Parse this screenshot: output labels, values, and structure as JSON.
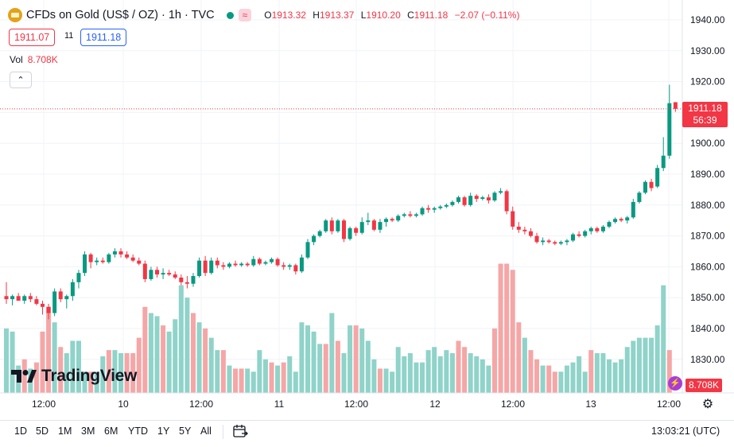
{
  "header": {
    "symbol": "CFDs on Gold (US$ / OZ) · 1h · TVC",
    "waves_icon": "≈",
    "o_label": "O",
    "o_value": "1913.32",
    "h_label": "H",
    "h_value": "1913.37",
    "l_label": "L",
    "l_value": "1910.20",
    "c_label": "C",
    "c_value": "1911.18",
    "change": "−2.07 (−0.11%)",
    "sell_price": "1911.07",
    "spread": "11",
    "buy_price": "1911.18"
  },
  "volume": {
    "label": "Vol",
    "value": "8.708K"
  },
  "collapse_icon": "chevron-up-icon",
  "brand": {
    "name": "TradingView"
  },
  "price_axis": {
    "ticks": [
      "1940.00",
      "1930.00",
      "1920.00",
      "1910.00",
      "1900.00",
      "1890.00",
      "1880.00",
      "1870.00",
      "1860.00",
      "1850.00",
      "1840.00",
      "1830.00"
    ],
    "current_price": "1911.18",
    "countdown": "56:39",
    "volume_label": "8.708K"
  },
  "time_axis": {
    "ticks": [
      "12:00",
      "10",
      "12:00",
      "11",
      "12:00",
      "12",
      "12:00",
      "13",
      "12:00"
    ]
  },
  "ranges": [
    "1D",
    "5D",
    "1M",
    "3M",
    "6M",
    "YTD",
    "1Y",
    "5Y",
    "All"
  ],
  "clock": "13:03:21 (UTC)",
  "colors": {
    "up": "#089981",
    "down": "#f23645",
    "vol_up": "#8fd3c9",
    "vol_down": "#f5a6a6"
  },
  "chart_data": {
    "type": "candlestick",
    "ylim": [
      1825,
      1945
    ],
    "candles": [
      [
        1850.5,
        1855.0,
        1848.0,
        1849.5
      ],
      [
        1849.5,
        1851.0,
        1847.5,
        1850.5
      ],
      [
        1850.5,
        1851.5,
        1849.0,
        1849.0
      ],
      [
        1849.0,
        1851.0,
        1848.0,
        1850.5
      ],
      [
        1850.5,
        1851.5,
        1848.5,
        1849.5
      ],
      [
        1849.5,
        1850.5,
        1847.5,
        1848.0
      ],
      [
        1848.0,
        1849.0,
        1844.5,
        1847.0
      ],
      [
        1847.0,
        1848.0,
        1843.0,
        1845.0
      ],
      [
        1845.0,
        1853.0,
        1844.0,
        1852.0
      ],
      [
        1852.0,
        1853.0,
        1848.5,
        1849.5
      ],
      [
        1849.5,
        1851.0,
        1846.5,
        1850.5
      ],
      [
        1850.5,
        1856.0,
        1849.0,
        1855.0
      ],
      [
        1855.0,
        1859.0,
        1853.0,
        1858.0
      ],
      [
        1858.0,
        1865.0,
        1857.0,
        1864.0
      ],
      [
        1864.0,
        1864.5,
        1859.5,
        1861.5
      ],
      [
        1861.5,
        1863.0,
        1860.5,
        1862.0
      ],
      [
        1862.0,
        1863.0,
        1861.0,
        1861.5
      ],
      [
        1861.5,
        1864.5,
        1861.0,
        1864.0
      ],
      [
        1864.0,
        1866.0,
        1863.0,
        1865.0
      ],
      [
        1865.0,
        1866.0,
        1863.0,
        1864.0
      ],
      [
        1864.0,
        1865.0,
        1862.5,
        1863.0
      ],
      [
        1863.0,
        1864.0,
        1861.5,
        1862.0
      ],
      [
        1862.0,
        1863.0,
        1860.5,
        1861.0
      ],
      [
        1861.0,
        1862.0,
        1855.0,
        1856.0
      ],
      [
        1856.0,
        1860.0,
        1855.5,
        1859.0
      ],
      [
        1859.0,
        1860.0,
        1856.5,
        1857.5
      ],
      [
        1857.5,
        1859.5,
        1856.0,
        1858.0
      ],
      [
        1858.0,
        1859.0,
        1857.0,
        1857.5
      ],
      [
        1857.5,
        1858.5,
        1856.0,
        1856.5
      ],
      [
        1856.5,
        1857.5,
        1854.0,
        1855.0
      ],
      [
        1855.0,
        1857.0,
        1853.0,
        1854.5
      ],
      [
        1854.5,
        1858.0,
        1853.5,
        1857.0
      ],
      [
        1857.0,
        1863.0,
        1856.5,
        1862.0
      ],
      [
        1862.0,
        1863.5,
        1857.0,
        1858.0
      ],
      [
        1858.0,
        1863.0,
        1857.5,
        1862.0
      ],
      [
        1862.0,
        1863.0,
        1859.5,
        1860.5
      ],
      [
        1860.5,
        1861.5,
        1859.0,
        1860.0
      ],
      [
        1860.0,
        1861.5,
        1859.5,
        1861.0
      ],
      [
        1861.0,
        1862.0,
        1860.0,
        1860.5
      ],
      [
        1860.5,
        1861.5,
        1860.0,
        1861.0
      ],
      [
        1861.0,
        1861.5,
        1860.0,
        1860.5
      ],
      [
        1860.5,
        1863.5,
        1860.0,
        1862.5
      ],
      [
        1862.5,
        1863.0,
        1860.5,
        1861.0
      ],
      [
        1861.0,
        1862.0,
        1860.5,
        1861.5
      ],
      [
        1861.5,
        1863.0,
        1861.0,
        1862.5
      ],
      [
        1862.5,
        1863.0,
        1860.0,
        1860.5
      ],
      [
        1860.5,
        1861.5,
        1859.0,
        1860.0
      ],
      [
        1860.0,
        1861.0,
        1859.0,
        1860.5
      ],
      [
        1860.5,
        1861.0,
        1857.5,
        1858.5
      ],
      [
        1858.5,
        1864.0,
        1858.0,
        1863.0
      ],
      [
        1863.0,
        1869.0,
        1862.5,
        1868.0
      ],
      [
        1868.0,
        1870.5,
        1867.0,
        1870.0
      ],
      [
        1870.0,
        1872.0,
        1869.5,
        1871.5
      ],
      [
        1871.5,
        1875.5,
        1871.0,
        1875.0
      ],
      [
        1875.0,
        1876.0,
        1870.5,
        1871.5
      ],
      [
        1871.5,
        1875.5,
        1871.0,
        1875.0
      ],
      [
        1875.0,
        1875.5,
        1868.0,
        1869.0
      ],
      [
        1869.0,
        1873.0,
        1868.5,
        1872.5
      ],
      [
        1872.5,
        1873.0,
        1870.0,
        1871.0
      ],
      [
        1871.0,
        1876.0,
        1870.5,
        1874.5
      ],
      [
        1874.5,
        1877.5,
        1873.5,
        1875.0
      ],
      [
        1875.0,
        1875.5,
        1871.5,
        1872.0
      ],
      [
        1872.0,
        1875.5,
        1871.0,
        1874.5
      ],
      [
        1874.5,
        1876.0,
        1873.0,
        1875.5
      ],
      [
        1875.5,
        1876.0,
        1874.5,
        1875.0
      ],
      [
        1875.0,
        1877.0,
        1874.5,
        1876.5
      ],
      [
        1876.5,
        1877.5,
        1876.0,
        1877.0
      ],
      [
        1877.0,
        1878.0,
        1876.0,
        1876.5
      ],
      [
        1876.5,
        1877.5,
        1876.0,
        1877.0
      ],
      [
        1877.0,
        1879.5,
        1876.5,
        1879.0
      ],
      [
        1879.0,
        1880.0,
        1877.5,
        1878.5
      ],
      [
        1878.5,
        1879.5,
        1877.5,
        1879.0
      ],
      [
        1879.0,
        1880.0,
        1878.5,
        1879.5
      ],
      [
        1879.5,
        1880.5,
        1879.0,
        1880.0
      ],
      [
        1880.0,
        1881.5,
        1879.5,
        1881.0
      ],
      [
        1881.0,
        1883.0,
        1880.5,
        1882.5
      ],
      [
        1882.5,
        1883.0,
        1879.5,
        1880.0
      ],
      [
        1880.0,
        1884.0,
        1879.5,
        1883.0
      ],
      [
        1883.0,
        1883.5,
        1881.0,
        1882.0
      ],
      [
        1882.0,
        1883.0,
        1881.5,
        1882.5
      ],
      [
        1882.5,
        1883.5,
        1880.5,
        1881.5
      ],
      [
        1881.5,
        1884.5,
        1881.0,
        1884.0
      ],
      [
        1884.0,
        1885.5,
        1883.5,
        1884.5
      ],
      [
        1884.5,
        1885.0,
        1877.0,
        1878.0
      ],
      [
        1878.0,
        1879.5,
        1872.0,
        1873.0
      ],
      [
        1873.0,
        1874.5,
        1871.0,
        1872.0
      ],
      [
        1872.0,
        1873.0,
        1870.5,
        1871.5
      ],
      [
        1871.5,
        1872.5,
        1869.5,
        1870.0
      ],
      [
        1870.0,
        1871.0,
        1867.5,
        1868.0
      ],
      [
        1868.0,
        1869.5,
        1867.0,
        1868.5
      ],
      [
        1868.5,
        1869.0,
        1867.5,
        1868.0
      ],
      [
        1868.0,
        1868.5,
        1867.0,
        1867.5
      ],
      [
        1867.5,
        1868.5,
        1867.0,
        1868.0
      ],
      [
        1868.0,
        1869.0,
        1867.0,
        1868.5
      ],
      [
        1868.5,
        1871.0,
        1868.0,
        1870.5
      ],
      [
        1870.5,
        1871.5,
        1869.5,
        1870.0
      ],
      [
        1870.0,
        1872.0,
        1869.5,
        1871.5
      ],
      [
        1871.5,
        1873.0,
        1870.5,
        1872.5
      ],
      [
        1872.5,
        1873.0,
        1871.0,
        1871.5
      ],
      [
        1871.5,
        1873.5,
        1871.0,
        1873.0
      ],
      [
        1873.0,
        1875.0,
        1872.5,
        1874.5
      ],
      [
        1874.5,
        1876.0,
        1874.0,
        1875.5
      ],
      [
        1875.5,
        1876.0,
        1874.5,
        1875.0
      ],
      [
        1875.0,
        1876.5,
        1874.0,
        1876.0
      ],
      [
        1876.0,
        1882.0,
        1875.5,
        1881.0
      ],
      [
        1881.0,
        1884.5,
        1880.5,
        1884.0
      ],
      [
        1884.0,
        1888.0,
        1883.5,
        1887.5
      ],
      [
        1887.5,
        1888.5,
        1884.5,
        1885.5
      ],
      [
        1886.0,
        1893.0,
        1885.5,
        1892.0
      ],
      [
        1892.0,
        1902.0,
        1891.0,
        1896.0
      ],
      [
        1896.0,
        1919.0,
        1895.0,
        1913.0
      ],
      [
        1913.32,
        1913.37,
        1910.2,
        1911.18
      ]
    ],
    "volumes": [
      [
        1840,
        1
      ],
      [
        1839,
        1
      ],
      [
        1828,
        1
      ],
      [
        1830,
        0
      ],
      [
        1827,
        1
      ],
      [
        1829,
        0
      ],
      [
        1839,
        0
      ],
      [
        1847,
        0
      ],
      [
        1842,
        1
      ],
      [
        1834,
        0
      ],
      [
        1832,
        1
      ],
      [
        1836,
        1
      ],
      [
        1836,
        1
      ],
      [
        1826,
        1
      ],
      [
        1826,
        0
      ],
      [
        1826,
        1
      ],
      [
        1831,
        1
      ],
      [
        1833,
        0
      ],
      [
        1833,
        1
      ],
      [
        1832,
        1
      ],
      [
        1832,
        0
      ],
      [
        1832,
        0
      ],
      [
        1837,
        0
      ],
      [
        1847,
        0
      ],
      [
        1845,
        1
      ],
      [
        1844,
        1
      ],
      [
        1841,
        0
      ],
      [
        1839,
        1
      ],
      [
        1843,
        1
      ],
      [
        1854,
        1
      ],
      [
        1850,
        1
      ],
      [
        1845,
        0
      ],
      [
        1842,
        1
      ],
      [
        1840,
        0
      ],
      [
        1837,
        1
      ],
      [
        1833,
        1
      ],
      [
        1833,
        0
      ],
      [
        1828,
        1
      ],
      [
        1827,
        0
      ],
      [
        1827,
        0
      ],
      [
        1827,
        1
      ],
      [
        1826,
        1
      ],
      [
        1833,
        1
      ],
      [
        1830,
        1
      ],
      [
        1829,
        0
      ],
      [
        1828,
        1
      ],
      [
        1829,
        0
      ],
      [
        1831,
        1
      ],
      [
        1826,
        1
      ],
      [
        1842,
        1
      ],
      [
        1841,
        1
      ],
      [
        1839,
        1
      ],
      [
        1835,
        1
      ],
      [
        1835,
        0
      ],
      [
        1845,
        1
      ],
      [
        1836,
        0
      ],
      [
        1832,
        1
      ],
      [
        1841,
        1
      ],
      [
        1841,
        0
      ],
      [
        1840,
        1
      ],
      [
        1836,
        1
      ],
      [
        1830,
        1
      ],
      [
        1827,
        0
      ],
      [
        1827,
        1
      ],
      [
        1826,
        1
      ],
      [
        1834,
        1
      ],
      [
        1831,
        1
      ],
      [
        1832,
        1
      ],
      [
        1829,
        1
      ],
      [
        1829,
        1
      ],
      [
        1833,
        1
      ],
      [
        1834,
        1
      ],
      [
        1831,
        1
      ],
      [
        1833,
        1
      ],
      [
        1832,
        1
      ],
      [
        1836,
        0
      ],
      [
        1834,
        0
      ],
      [
        1832,
        1
      ],
      [
        1831,
        1
      ],
      [
        1830,
        1
      ],
      [
        1828,
        1
      ],
      [
        1840,
        0
      ],
      [
        1861,
        0
      ],
      [
        1861,
        0
      ],
      [
        1859,
        0
      ],
      [
        1842,
        0
      ],
      [
        1837,
        1
      ],
      [
        1833,
        0
      ],
      [
        1830,
        0
      ],
      [
        1828,
        1
      ],
      [
        1828,
        0
      ],
      [
        1826,
        0
      ],
      [
        1826,
        1
      ],
      [
        1828,
        1
      ],
      [
        1829,
        1
      ],
      [
        1831,
        1
      ],
      [
        1826,
        1
      ],
      [
        1833,
        0
      ],
      [
        1832,
        1
      ],
      [
        1832,
        1
      ],
      [
        1830,
        1
      ],
      [
        1829,
        1
      ],
      [
        1830,
        1
      ],
      [
        1834,
        1
      ],
      [
        1836,
        1
      ],
      [
        1837,
        1
      ],
      [
        1837,
        1
      ],
      [
        1837,
        1
      ],
      [
        1841,
        1
      ],
      [
        1854,
        1
      ],
      [
        1833,
        0
      ]
    ]
  }
}
